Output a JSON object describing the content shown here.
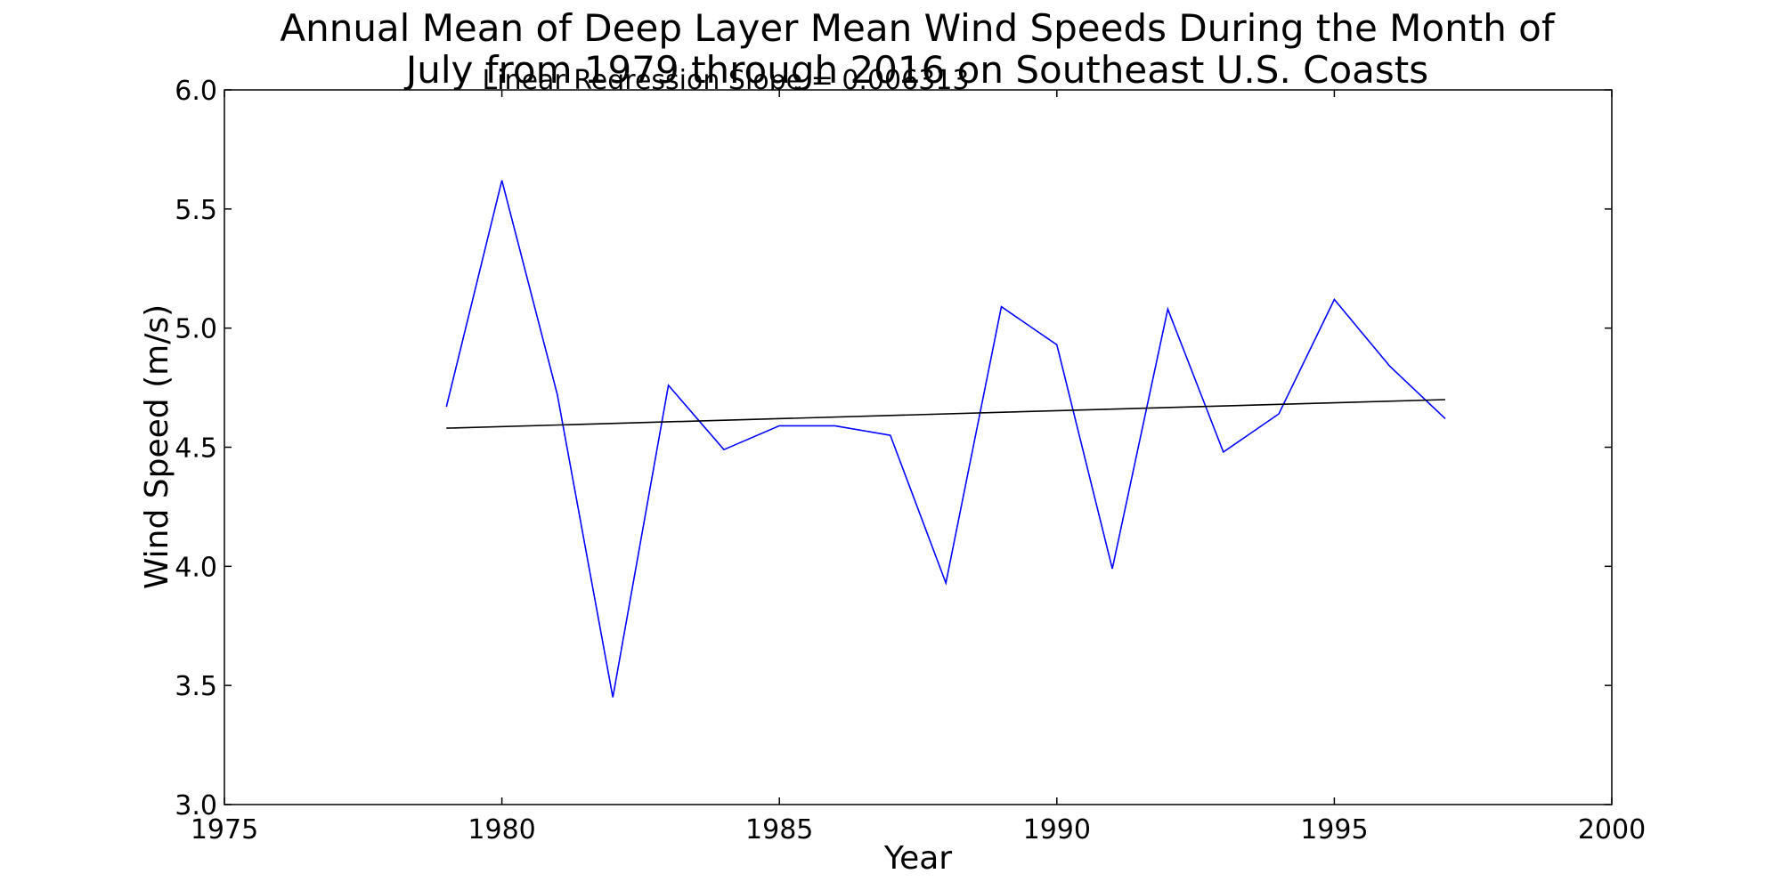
{
  "chart_data": {
    "type": "line",
    "title_lines": [
      "Annual Mean of Deep Layer Mean Wind Speeds During the Month of",
      "July from 1979 through 2016 on Southeast U.S. Coasts"
    ],
    "annotation": "Linear Regression Slope = 0.006313",
    "xlabel": "Year",
    "ylabel": "Wind Speed (m/s)",
    "xlim": [
      1975,
      2000
    ],
    "ylim": [
      3.0,
      6.0
    ],
    "xticks": [
      1975,
      1980,
      1985,
      1990,
      1995,
      2000
    ],
    "yticks": [
      3.0,
      3.5,
      4.0,
      4.5,
      5.0,
      5.5,
      6.0
    ],
    "grid": false,
    "series": [
      {
        "color": "#0000ff",
        "x": [
          1979,
          1980,
          1981,
          1982,
          1983,
          1984,
          1985,
          1986,
          1987,
          1988,
          1989,
          1990,
          1991,
          1992,
          1993,
          1994,
          1995,
          1996,
          1997
        ],
        "y": [
          4.67,
          5.62,
          4.72,
          3.45,
          4.76,
          4.49,
          4.59,
          4.59,
          4.55,
          3.93,
          5.09,
          4.93,
          3.99,
          5.08,
          4.48,
          4.64,
          5.12,
          4.84,
          4.62
        ]
      },
      {
        "color": "#000000",
        "x": [
          1979,
          1997
        ],
        "y": [
          4.58,
          4.7
        ]
      }
    ]
  }
}
